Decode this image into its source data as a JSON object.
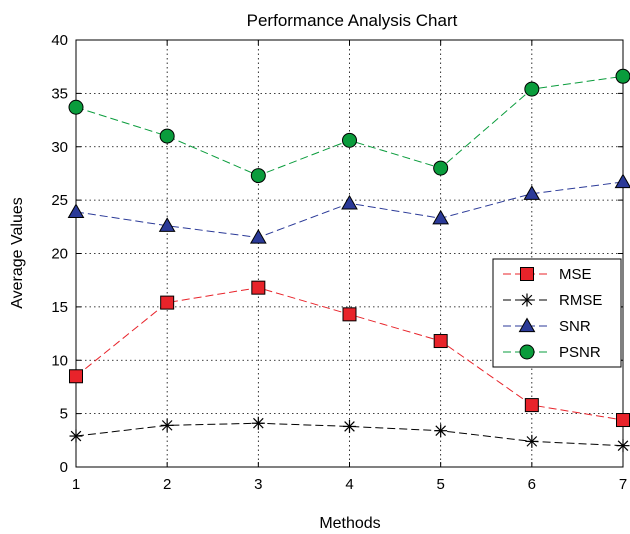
{
  "chart_data": {
    "type": "line",
    "title": "Performance Analysis Chart",
    "xlabel": "Methods",
    "ylabel": "Average Values",
    "x": [
      1,
      2,
      3,
      4,
      5,
      6,
      7
    ],
    "x_tick_labels": [
      "1",
      "2",
      "3",
      "4",
      "5",
      "6",
      "7"
    ],
    "y_tick_labels": [
      "0",
      "5",
      "10",
      "15",
      "20",
      "25",
      "30",
      "35",
      "40"
    ],
    "xlim": [
      1,
      7
    ],
    "ylim": [
      0,
      40
    ],
    "grid": true,
    "grid_style": "dotted",
    "legend_position": "right",
    "series": [
      {
        "name": "MSE",
        "values": [
          8.5,
          15.4,
          16.8,
          14.3,
          11.8,
          5.8,
          4.4
        ],
        "color": "#e8232a",
        "marker": "square"
      },
      {
        "name": "RMSE",
        "values": [
          2.9,
          3.9,
          4.1,
          3.8,
          3.4,
          2.4,
          2.0
        ],
        "color": "#000000",
        "marker": "asterisk"
      },
      {
        "name": "SNR",
        "values": [
          23.9,
          22.6,
          21.5,
          24.7,
          23.3,
          25.6,
          26.7
        ],
        "color": "#2b3a98",
        "marker": "triangle"
      },
      {
        "name": "PSNR",
        "values": [
          33.7,
          31.0,
          27.3,
          30.6,
          28.0,
          35.4,
          36.6
        ],
        "color": "#0a9c3c",
        "marker": "circle"
      }
    ]
  }
}
